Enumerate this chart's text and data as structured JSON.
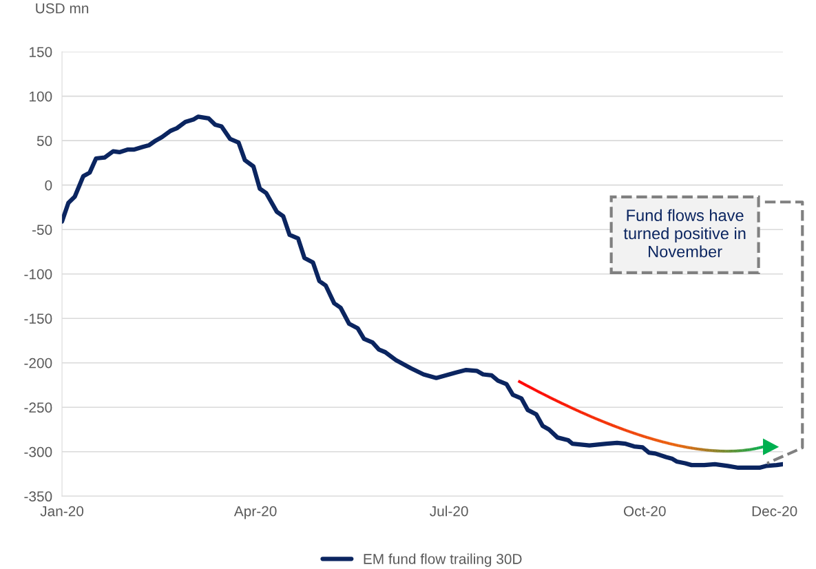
{
  "chart_data": {
    "type": "line",
    "ylabel": "USD mn",
    "x": [
      "2020-01-01",
      "2020-01-04",
      "2020-01-07",
      "2020-01-11",
      "2020-01-14",
      "2020-01-17",
      "2020-01-21",
      "2020-01-25",
      "2020-01-28",
      "2020-02-01",
      "2020-02-04",
      "2020-02-08",
      "2020-02-11",
      "2020-02-14",
      "2020-02-17",
      "2020-02-21",
      "2020-02-24",
      "2020-02-28",
      "2020-03-03",
      "2020-03-05",
      "2020-03-10",
      "2020-03-13",
      "2020-03-16",
      "2020-03-20",
      "2020-03-24",
      "2020-03-27",
      "2020-03-31",
      "2020-04-03",
      "2020-04-06",
      "2020-04-11",
      "2020-04-14",
      "2020-04-17",
      "2020-04-21",
      "2020-04-24",
      "2020-04-28",
      "2020-05-01",
      "2020-05-04",
      "2020-05-08",
      "2020-05-11",
      "2020-05-15",
      "2020-05-19",
      "2020-05-22",
      "2020-05-26",
      "2020-05-29",
      "2020-06-01",
      "2020-06-06",
      "2020-06-13",
      "2020-06-19",
      "2020-06-25",
      "2020-07-04",
      "2020-07-09",
      "2020-07-14",
      "2020-07-17",
      "2020-07-21",
      "2020-07-24",
      "2020-07-28",
      "2020-07-31",
      "2020-08-04",
      "2020-08-07",
      "2020-08-11",
      "2020-08-14",
      "2020-08-17",
      "2020-08-21",
      "2020-08-26",
      "2020-08-28",
      "2020-09-05",
      "2020-09-09",
      "2020-09-13",
      "2020-09-18",
      "2020-09-22",
      "2020-09-26",
      "2020-09-30",
      "2020-10-03",
      "2020-10-06",
      "2020-10-11",
      "2020-10-14",
      "2020-10-16",
      "2020-10-20",
      "2020-10-23",
      "2020-10-29",
      "2020-11-03",
      "2020-11-09",
      "2020-11-14",
      "2020-11-18",
      "2020-11-24",
      "2020-11-27",
      "2020-12-02",
      "2020-12-05"
    ],
    "series": [
      {
        "name": "EM fund flow trailing 30D",
        "color": "#0b2560",
        "values": [
          -41,
          -20,
          -13,
          10,
          14,
          30,
          31,
          38,
          37,
          40,
          40,
          43,
          45,
          50,
          54,
          61,
          64,
          71,
          74,
          77,
          75,
          68,
          66,
          52,
          48,
          28,
          21,
          -4,
          -9,
          -30,
          -35,
          -56,
          -60,
          -82,
          -87,
          -108,
          -113,
          -133,
          -138,
          -156,
          -161,
          -173,
          -177,
          -185,
          -188,
          -197,
          -206,
          -213,
          -217,
          -211,
          -208,
          -209,
          -213,
          -214,
          -220,
          -224,
          -236,
          -240,
          -253,
          -258,
          -271,
          -275,
          -284,
          -287,
          -291,
          -293,
          -292,
          -291,
          -290,
          -291,
          -294,
          -295,
          -301,
          -302,
          -306,
          -308,
          -311,
          -313,
          -315,
          -315,
          -314,
          -316,
          -318,
          -318,
          -318,
          -316,
          -315,
          -314
        ]
      }
    ],
    "xlim": [
      "2020-01-01",
      "2020-12-05"
    ],
    "xticks": [
      {
        "value": "2020-01-01",
        "label": "Jan-20"
      },
      {
        "value": "2020-04-01",
        "label": "Apr-20"
      },
      {
        "value": "2020-07-01",
        "label": "Jul-20"
      },
      {
        "value": "2020-10-01",
        "label": "Oct-20"
      },
      {
        "value": "2020-12-01",
        "label": "Dec-20"
      }
    ],
    "ylim": [
      -350,
      150
    ],
    "yticks": [
      -350,
      -300,
      -250,
      -200,
      -150,
      -100,
      -50,
      0,
      50,
      100,
      150
    ],
    "grid": "y",
    "legend": "bottom",
    "marker": "none",
    "line_style": "solid",
    "annotations": [
      "Fund flows have turned positive in November"
    ]
  }
}
